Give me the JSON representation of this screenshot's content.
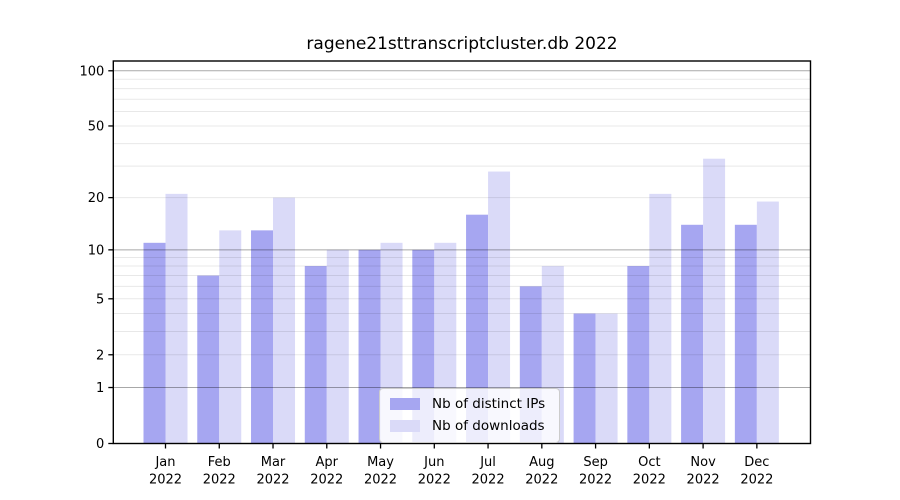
{
  "chart_data": {
    "type": "bar",
    "title": "ragene21sttranscriptcluster.db 2022",
    "year": "2022",
    "categories": [
      "Jan",
      "Feb",
      "Mar",
      "Apr",
      "May",
      "Jun",
      "Jul",
      "Aug",
      "Sep",
      "Oct",
      "Nov",
      "Dec"
    ],
    "series": [
      {
        "name": "Nb of distinct IPs",
        "color": "#a6a6f1",
        "values": [
          11,
          7,
          13,
          8,
          10,
          10,
          16,
          6,
          4,
          8,
          14,
          14
        ]
      },
      {
        "name": "Nb of downloads",
        "color": "#dadaf8",
        "values": [
          21,
          13,
          20,
          10,
          11,
          11,
          28,
          8,
          4,
          21,
          33,
          19
        ]
      }
    ],
    "xlabel": "",
    "ylabel": "",
    "yscale": "log1p",
    "ylim": [
      0,
      113
    ],
    "yticks": [
      0,
      1,
      2,
      5,
      10,
      20,
      50,
      100
    ],
    "gridlines": {
      "major": [
        1,
        10,
        100
      ],
      "minor": [
        2,
        3,
        4,
        5,
        6,
        7,
        8,
        9,
        20,
        30,
        40,
        50,
        60,
        70,
        80,
        90
      ]
    },
    "grid": true,
    "legend_position": "lower center"
  },
  "colors": {
    "bar_distinct_ips": "#a6a6f1",
    "bar_downloads": "#dadaf8",
    "axis_frame": "#000000",
    "major_gridline": "#ababab",
    "minor_gridline": "#ebebeb",
    "tick_label": "#000000",
    "background": "#ffffff"
  }
}
